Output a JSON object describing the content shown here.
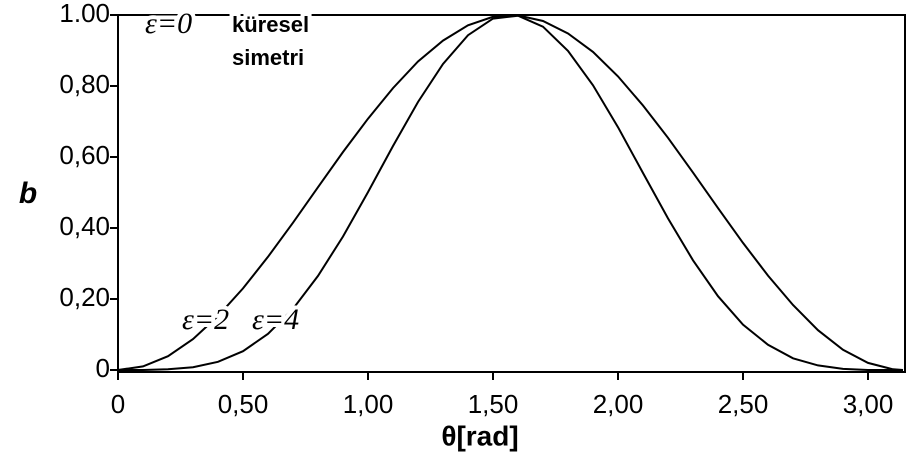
{
  "chart_data": {
    "type": "line",
    "x_label": "θ[rad]",
    "y_label": "b",
    "annotations": [
      "küresel",
      "simetri"
    ],
    "x": [
      0,
      0.1,
      0.2,
      0.3,
      0.4,
      0.5,
      0.6,
      0.7,
      0.8,
      0.9,
      1.0,
      1.1,
      1.2,
      1.3,
      1.4,
      1.5,
      1.6,
      1.7,
      1.8,
      1.9,
      2.0,
      2.1,
      2.2,
      2.3,
      2.4,
      2.5,
      2.6,
      2.7,
      2.8,
      2.9,
      3.0,
      3.1,
      3.14
    ],
    "series": [
      {
        "name": "ε=0",
        "color": "#000000",
        "values": [
          1,
          1,
          1,
          1,
          1,
          1,
          1,
          1,
          1,
          1,
          1,
          1,
          1,
          1,
          1,
          1,
          1,
          1,
          1,
          1,
          1,
          1,
          1,
          1,
          1,
          1,
          1,
          1,
          1,
          1,
          1,
          1,
          1
        ]
      },
      {
        "name": "ε=2",
        "color": "#000000",
        "values": [
          0,
          0.01,
          0.039,
          0.087,
          0.152,
          0.23,
          0.319,
          0.415,
          0.515,
          0.614,
          0.708,
          0.794,
          0.869,
          0.928,
          0.971,
          0.995,
          0.999,
          0.983,
          0.948,
          0.896,
          0.827,
          0.745,
          0.654,
          0.556,
          0.456,
          0.358,
          0.266,
          0.183,
          0.112,
          0.057,
          0.02,
          0.002,
          0
        ]
      },
      {
        "name": "ε=4",
        "color": "#000000",
        "values": [
          0,
          0.0,
          0.002,
          0.008,
          0.023,
          0.053,
          0.102,
          0.172,
          0.265,
          0.376,
          0.501,
          0.631,
          0.755,
          0.862,
          0.943,
          0.99,
          0.998,
          0.967,
          0.899,
          0.802,
          0.684,
          0.555,
          0.427,
          0.309,
          0.208,
          0.128,
          0.071,
          0.033,
          0.013,
          0.003,
          0.0,
          0.0,
          0
        ]
      }
    ],
    "xlim": [
      0,
      3.14
    ],
    "ylim": [
      0,
      1
    ],
    "xticks": [
      0,
      {
        "value": 0.5,
        "label": "0,50"
      },
      {
        "value": 1,
        "label": "1,00"
      },
      {
        "value": 1.5,
        "label": "1,50"
      },
      {
        "value": 2,
        "label": "2,00"
      },
      {
        "value": 2.5,
        "label": "2,50"
      },
      {
        "value": 3,
        "label": "3,00"
      }
    ],
    "yticks": [
      0,
      {
        "value": 0.2,
        "label": "0,20"
      },
      {
        "value": 0.4,
        "label": "0,40"
      },
      {
        "value": 0.6,
        "label": "0,60"
      },
      {
        "value": 0.8,
        "label": "0,80"
      },
      {
        "value": 1,
        "label": "1.00"
      }
    ],
    "grid": false
  }
}
